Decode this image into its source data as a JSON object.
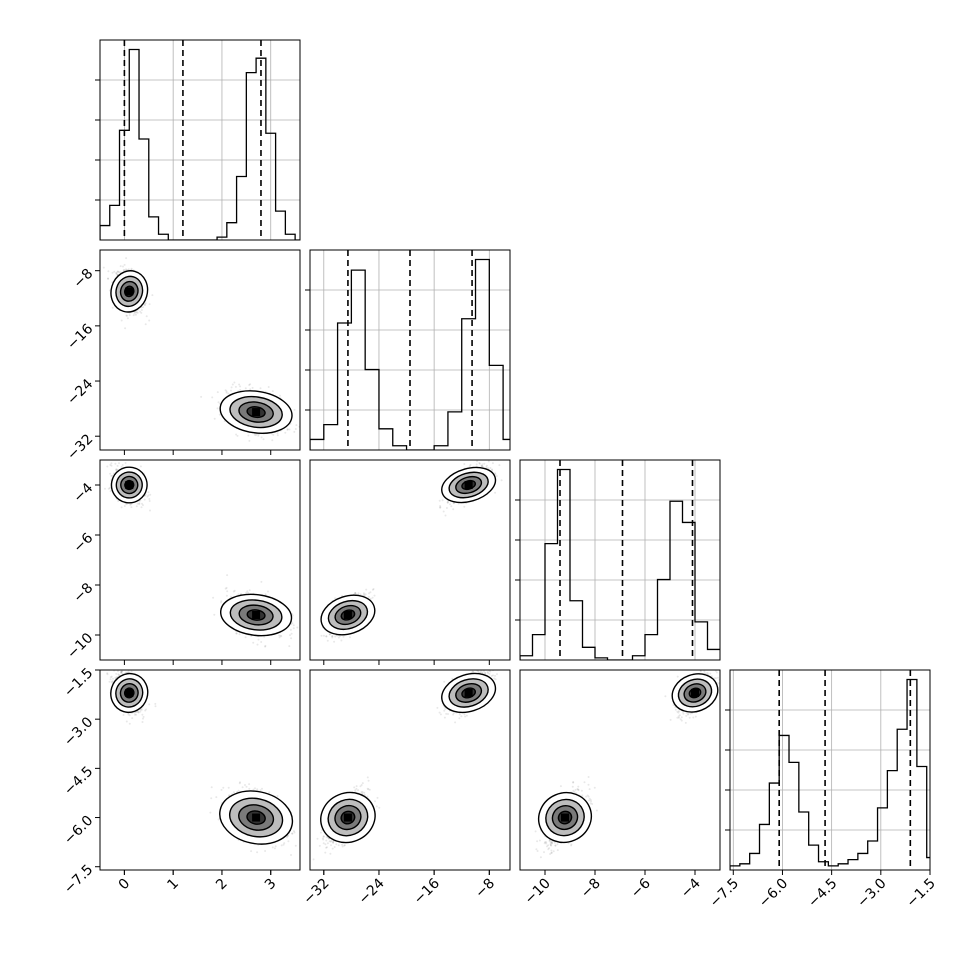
{
  "chart_data": {
    "type": "corner",
    "title": "",
    "parameters": [
      {
        "range": [
          -0.5,
          3.6
        ],
        "ticks": [
          0,
          1,
          2,
          3
        ],
        "tick_labels": [
          "0",
          "1",
          "2",
          "3"
        ],
        "quantiles": [
          0.0,
          1.2,
          2.8
        ],
        "hist_bin_edges": [
          -0.5,
          -0.3,
          -0.1,
          0.1,
          0.3,
          0.5,
          0.7,
          0.9,
          1.1,
          1.3,
          1.5,
          1.7,
          1.9,
          2.1,
          2.3,
          2.5,
          2.7,
          2.9,
          3.1,
          3.3,
          3.5,
          3.6
        ],
        "hist_heights": [
          0.05,
          0.12,
          0.38,
          0.66,
          0.35,
          0.08,
          0.02,
          0.0,
          0.0,
          0.0,
          0.0,
          0.0,
          0.01,
          0.06,
          0.22,
          0.58,
          0.63,
          0.37,
          0.1,
          0.02,
          0.0
        ]
      },
      {
        "range": [
          -34,
          -5
        ],
        "ticks": [
          -8,
          -16,
          -24,
          -32
        ],
        "tick_labels": [
          "−8",
          "−16",
          "−24",
          "−32"
        ],
        "quantiles": [
          -28.5,
          -19.5,
          -10.5
        ],
        "hist_bin_edges": [
          -34,
          -32,
          -30,
          -28,
          -26,
          -24,
          -22,
          -20,
          -18,
          -16,
          -14,
          -12,
          -10,
          -8,
          -6,
          -5
        ],
        "hist_heights": [
          0.05,
          0.12,
          0.6,
          0.85,
          0.38,
          0.1,
          0.02,
          0.0,
          0.0,
          0.02,
          0.18,
          0.62,
          0.9,
          0.4,
          0.05
        ]
      },
      {
        "range": [
          -11,
          -3
        ],
        "ticks": [
          -4,
          -6,
          -8,
          -10
        ],
        "tick_labels": [
          "−4",
          "−6",
          "−8",
          "−10"
        ],
        "quantiles": [
          -9.4,
          -6.9,
          -4.1
        ],
        "hist_bin_edges": [
          -11,
          -10.5,
          -10,
          -9.5,
          -9,
          -8.5,
          -8,
          -7.5,
          -7,
          -6.5,
          -6,
          -5.5,
          -5,
          -4.5,
          -4,
          -3.5,
          -3
        ],
        "hist_heights": [
          0.02,
          0.12,
          0.55,
          0.9,
          0.28,
          0.06,
          0.01,
          0.0,
          0.0,
          0.02,
          0.12,
          0.38,
          0.75,
          0.65,
          0.18,
          0.05
        ]
      },
      {
        "range": [
          -7.6,
          -1.5
        ],
        "ticks": [
          -7.5,
          -6.0,
          -4.5,
          -3.0,
          -1.5
        ],
        "tick_labels": [
          "−7.5",
          "−6.0",
          "−4.5",
          "−3.0",
          "−1.5"
        ],
        "quantiles": [
          -6.1,
          -4.7,
          -2.1
        ],
        "hist_bin_edges": [
          -7.6,
          -7.3,
          -7.0,
          -6.7,
          -6.4,
          -6.1,
          -5.8,
          -5.5,
          -5.2,
          -4.9,
          -4.6,
          -4.3,
          -4.0,
          -3.7,
          -3.4,
          -3.1,
          -2.8,
          -2.5,
          -2.2,
          -1.9,
          -1.6,
          -1.5
        ],
        "hist_heights": [
          0.02,
          0.03,
          0.08,
          0.22,
          0.42,
          0.65,
          0.52,
          0.28,
          0.12,
          0.04,
          0.02,
          0.03,
          0.05,
          0.08,
          0.14,
          0.3,
          0.48,
          0.68,
          0.92,
          0.5,
          0.06
        ]
      }
    ],
    "modes": [
      [
        0.1,
        -11.0,
        -4.0,
        -2.2
      ],
      [
        2.7,
        -28.5,
        -9.2,
        -6.0
      ]
    ],
    "mode_spread": [
      [
        0.15,
        1.5,
        0.35,
        0.3
      ],
      [
        0.3,
        1.5,
        0.4,
        0.4
      ]
    ],
    "correlations": {
      "1-0": -0.35,
      "2-0": -0.3,
      "2-1": 0.6,
      "3-0": -0.4,
      "3-1": 0.6,
      "3-2": 0.6
    },
    "grid": true
  }
}
